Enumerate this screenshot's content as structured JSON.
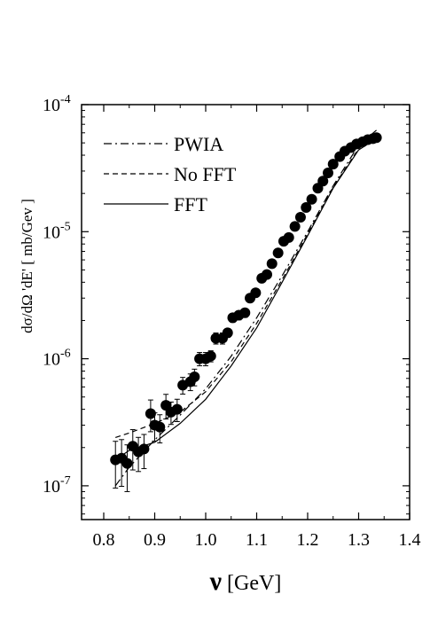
{
  "chart_data": {
    "type": "scatter",
    "xlabel_symbol": "ν",
    "xlabel_unit": "[GeV]",
    "ylabel": "dσ/dΩ 'dE' [ mb/Gev ]",
    "xlim": [
      0.75,
      1.4
    ],
    "ylim": [
      6.5e-08,
      0.0001
    ],
    "yscale": "log",
    "x_ticks": [
      "0.8",
      "0.9",
      "1.0",
      "1.1",
      "1.2",
      "1.3",
      "1.4"
    ],
    "y_ticks": [
      {
        "base": "10",
        "exp": "-7"
      },
      {
        "base": "10",
        "exp": "-6"
      },
      {
        "base": "10",
        "exp": "-5"
      },
      {
        "base": "10",
        "exp": "-4"
      }
    ],
    "legend_position": "top-left",
    "series": [
      {
        "name": "PWIA",
        "style": "dash-dot",
        "x": [
          0.823,
          0.85,
          0.9,
          0.95,
          1.0,
          1.05,
          1.1,
          1.15,
          1.2,
          1.25,
          1.3,
          1.335
        ],
        "y": [
          1e-07,
          1.4e-07,
          2.3e-07,
          3.6e-07,
          5.8e-07,
          1.05e-06,
          2.1e-06,
          4.5e-06,
          1e-05,
          2.3e-05,
          4.8e-05,
          6.3e-05
        ]
      },
      {
        "name": "No FFT",
        "style": "dashed",
        "x": [
          0.823,
          0.85,
          0.9,
          0.95,
          1.0,
          1.05,
          1.1,
          1.15,
          1.2,
          1.25,
          1.3,
          1.335
        ],
        "y": [
          2.4e-07,
          2.6e-07,
          3.1e-07,
          3.8e-07,
          5.5e-07,
          9.5e-07,
          1.9e-06,
          4.2e-06,
          9.6e-06,
          2.25e-05,
          4.5e-05,
          5.8e-05
        ]
      },
      {
        "name": "FFT",
        "style": "solid",
        "x": [
          0.823,
          0.85,
          0.9,
          0.95,
          1.0,
          1.05,
          1.1,
          1.15,
          1.2,
          1.25,
          1.3,
          1.335
        ],
        "y": [
          1.6e-07,
          1.9e-07,
          2.2e-07,
          3.1e-07,
          4.8e-07,
          8.8e-07,
          1.75e-06,
          4e-06,
          9.3e-06,
          2.2e-05,
          4.4e-05,
          5.4e-05
        ]
      }
    ],
    "points": {
      "name": "data",
      "x": [
        0.823,
        0.835,
        0.846,
        0.857,
        0.868,
        0.879,
        0.892,
        0.9,
        0.91,
        0.922,
        0.932,
        0.944,
        0.955,
        0.97,
        0.978,
        0.988,
        1.0,
        1.01,
        1.02,
        1.033,
        1.043,
        1.053,
        1.065,
        1.077,
        1.087,
        1.098,
        1.11,
        1.12,
        1.13,
        1.142,
        1.153,
        1.163,
        1.175,
        1.186,
        1.197,
        1.208,
        1.22,
        1.23,
        1.24,
        1.25,
        1.263,
        1.273,
        1.285,
        1.296,
        1.308,
        1.318,
        1.328,
        1.335
      ],
      "y": [
        1.6e-07,
        1.65e-07,
        1.5e-07,
        2.05e-07,
        1.85e-07,
        1.95e-07,
        3.7e-07,
        3e-07,
        2.9e-07,
        4.3e-07,
        3.8e-07,
        4e-07,
        6.2e-07,
        6.6e-07,
        7.2e-07,
        1e-06,
        1e-06,
        1.05e-06,
        1.45e-06,
        1.45e-06,
        1.6e-06,
        2.1e-06,
        2.2e-06,
        2.3e-06,
        3e-06,
        3.3e-06,
        4.3e-06,
        4.6e-06,
        5.6e-06,
        6.8e-06,
        8.4e-06,
        9e-06,
        1.1e-05,
        1.3e-05,
        1.55e-05,
        1.8e-05,
        2.2e-05,
        2.5e-05,
        2.9e-05,
        3.4e-05,
        3.9e-05,
        4.3e-05,
        4.6e-05,
        4.9e-05,
        5.1e-05,
        5.3e-05,
        5.4e-05,
        5.5e-05
      ],
      "yerr_frac": [
        0.4,
        0.4,
        0.4,
        0.35,
        0.3,
        0.3,
        0.28,
        0.25,
        0.25,
        0.22,
        0.2,
        0.2,
        0.15,
        0.15,
        0.15,
        0.12,
        0.12,
        0.1,
        0.1,
        0.1,
        0.08,
        0.08,
        0.08,
        0.08,
        0.07,
        0.06,
        0.06,
        0.06,
        0.06,
        0.05,
        0.05,
        0.05,
        0.05,
        0.05,
        0.05,
        0.05,
        0.05,
        0.05,
        0.05,
        0.05,
        0.05,
        0.05,
        0.05,
        0.05,
        0.05,
        0.05,
        0.05,
        0.05
      ]
    }
  }
}
